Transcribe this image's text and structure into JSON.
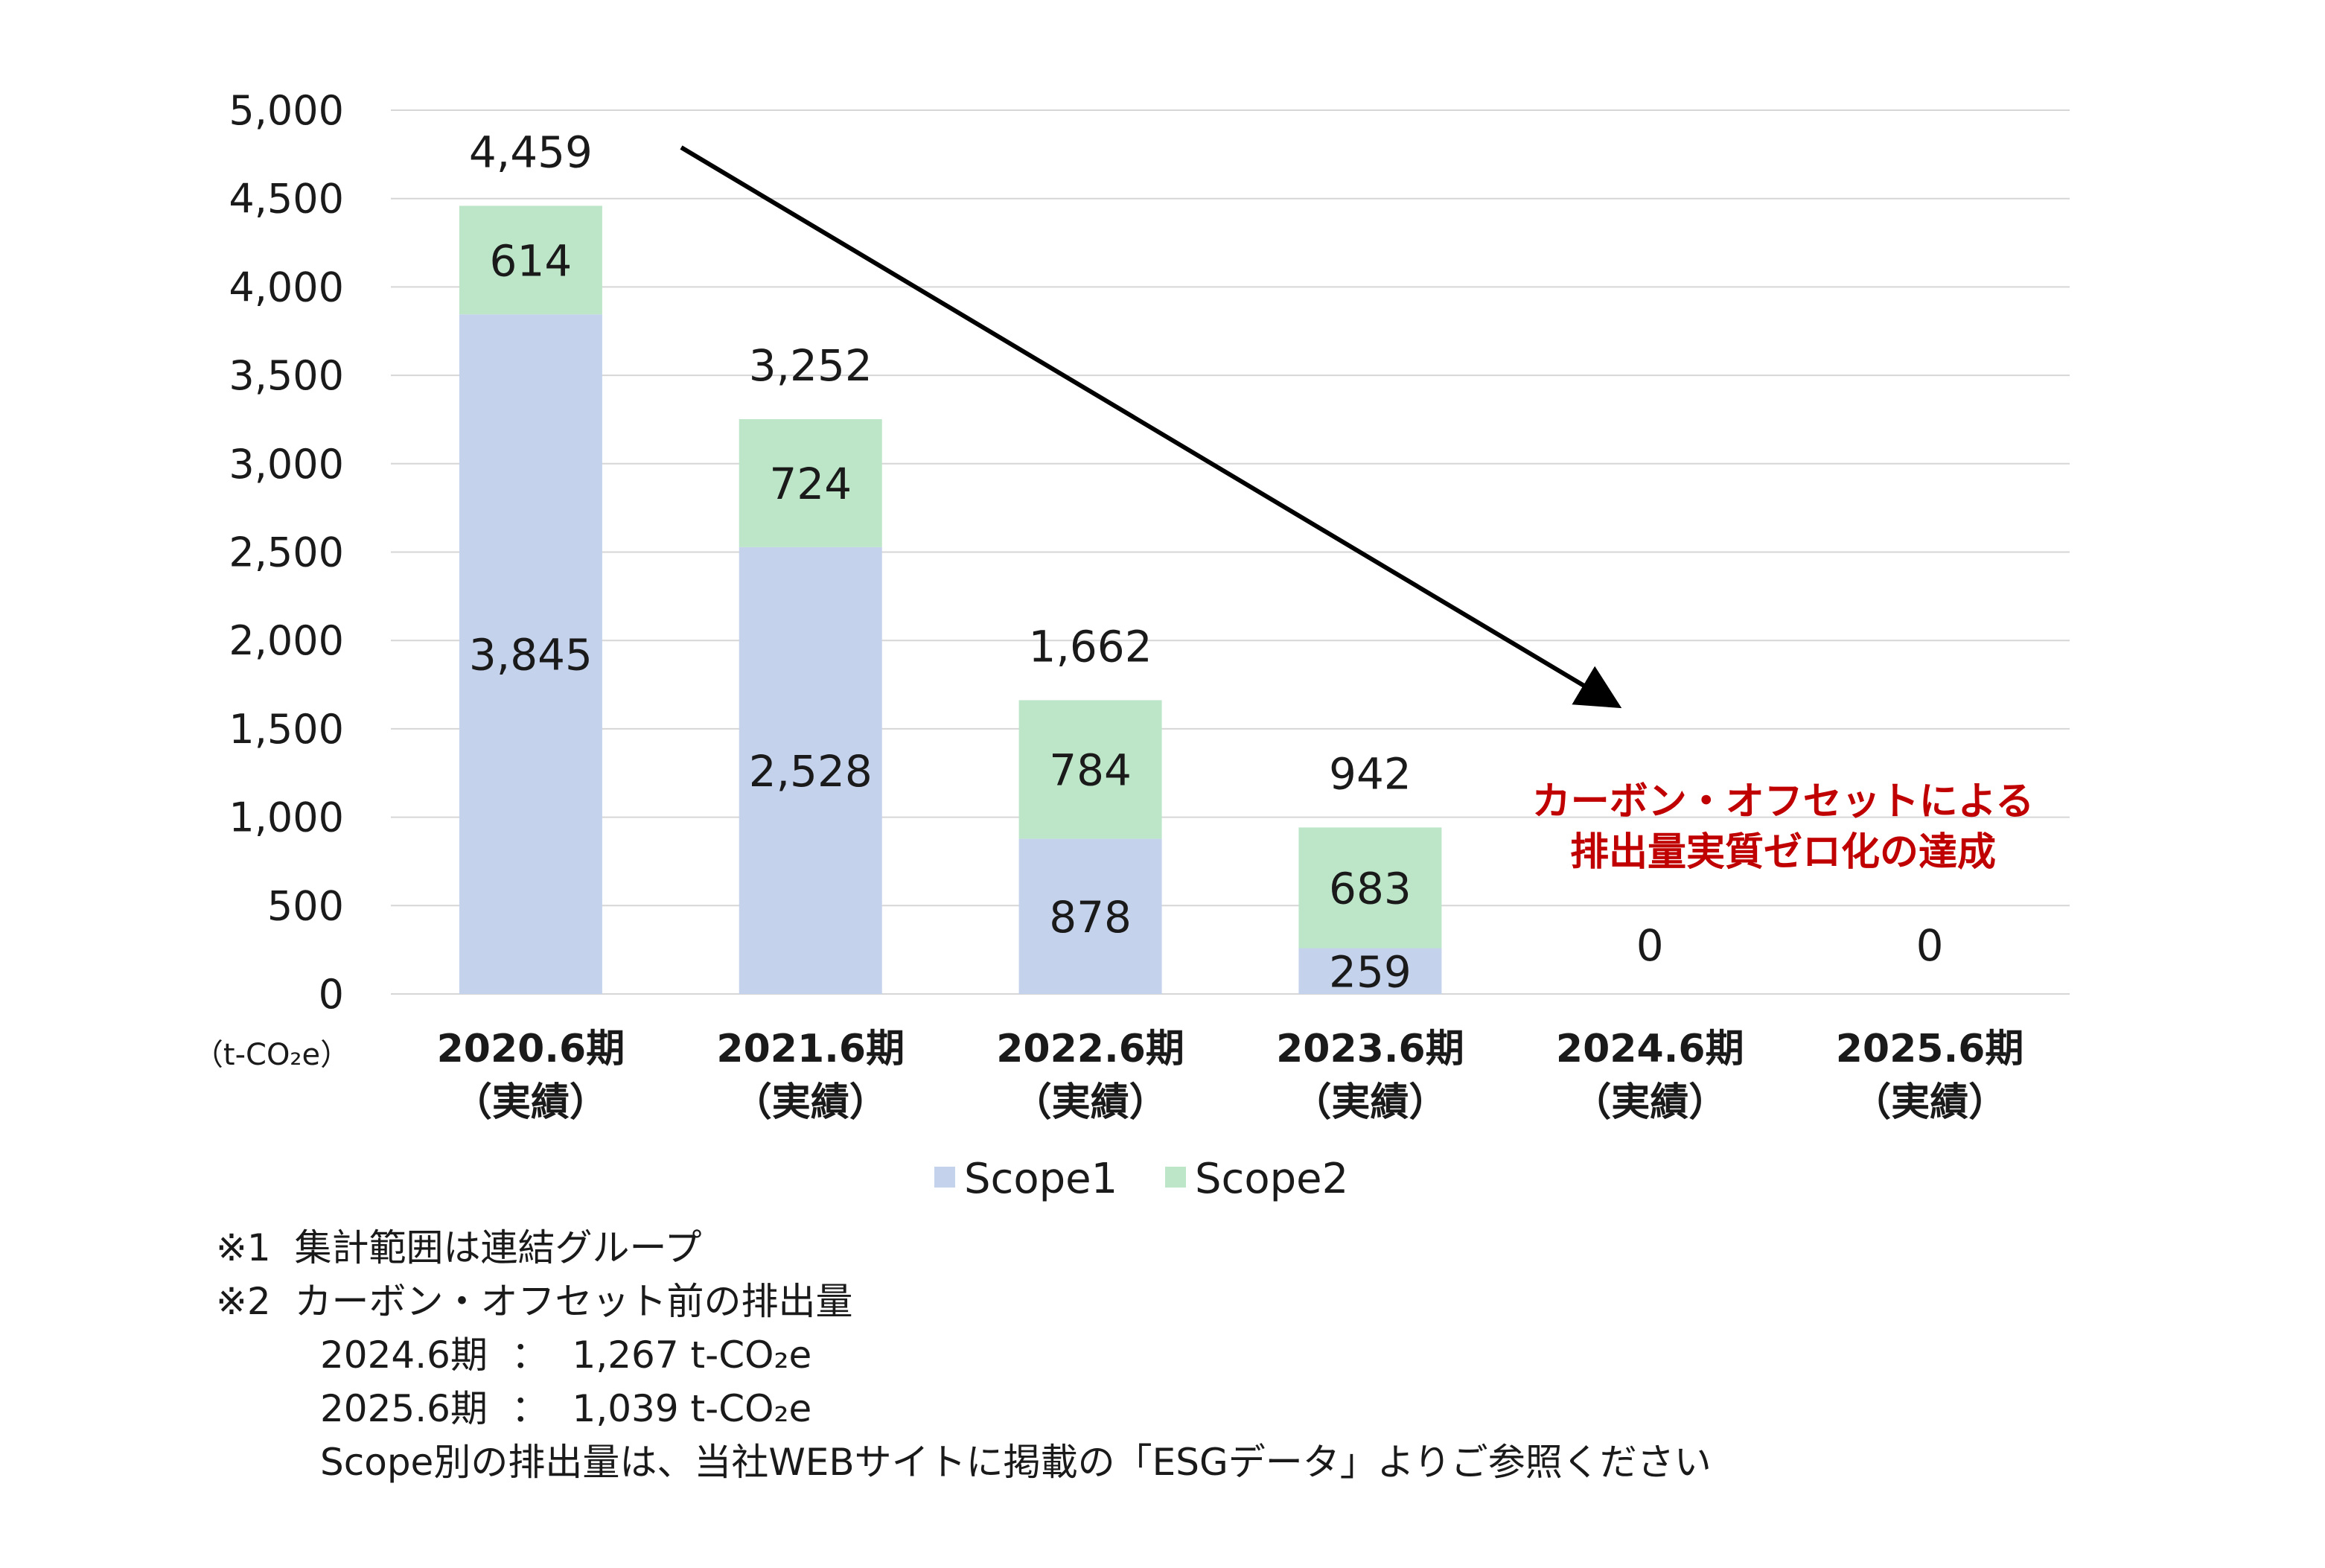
{
  "chart_data": {
    "type": "bar",
    "stacked": true,
    "categories": [
      [
        "2020.6期",
        "（実績）"
      ],
      [
        "2021.6期",
        "（実績）"
      ],
      [
        "2022.6期",
        "（実績）"
      ],
      [
        "2023.6期",
        "（実績）"
      ],
      [
        "2024.6期",
        "（実績）"
      ],
      [
        "2025.6期",
        "（実績）"
      ]
    ],
    "series": [
      {
        "name": "Scope1",
        "values": [
          3845,
          2528,
          878,
          259,
          0,
          0
        ],
        "labels": [
          "3,845",
          "2,528",
          "878",
          "259",
          "",
          ""
        ]
      },
      {
        "name": "Scope2",
        "values": [
          614,
          724,
          784,
          683,
          0,
          0
        ],
        "labels": [
          "614",
          "724",
          "784",
          "683",
          "",
          ""
        ]
      }
    ],
    "totals": [
      4459,
      3252,
      1662,
      942,
      0,
      0
    ],
    "total_labels": [
      "4,459",
      "3,252",
      "1,662",
      "942",
      "0",
      "0"
    ],
    "ylim": [
      0,
      5000
    ],
    "yticks": [
      0,
      500,
      1000,
      1500,
      2000,
      2500,
      3000,
      3500,
      4000,
      4500,
      5000
    ],
    "ytick_labels": [
      "0",
      "500",
      "1,000",
      "1,500",
      "2,000",
      "2,500",
      "3,000",
      "3,500",
      "4,000",
      "4,500",
      "5,000"
    ],
    "yunit": "（t-CO₂e）",
    "grid": true,
    "legend_position": "bottom",
    "colors": {
      "Scope1": "#c5d2ec",
      "Scope2": "#bde6c9",
      "grid": "#d6d6d6",
      "annotation": "#c00000"
    },
    "annotation": [
      "カーボン・オフセットによる",
      "排出量実質ゼロ化の達成"
    ],
    "trend_arrow": true
  },
  "footnotes": [
    "※1  集計範囲は連結グループ",
    "※2  カーボン・オフセット前の排出量",
    "2024.6期  ：  1,267 t-CO₂e",
    "2025.6期  ：  1,039 t-CO₂e",
    "Scope別の排出量は、当社WEBサイトに掲載の「ESGデータ」よりご参照ください"
  ]
}
